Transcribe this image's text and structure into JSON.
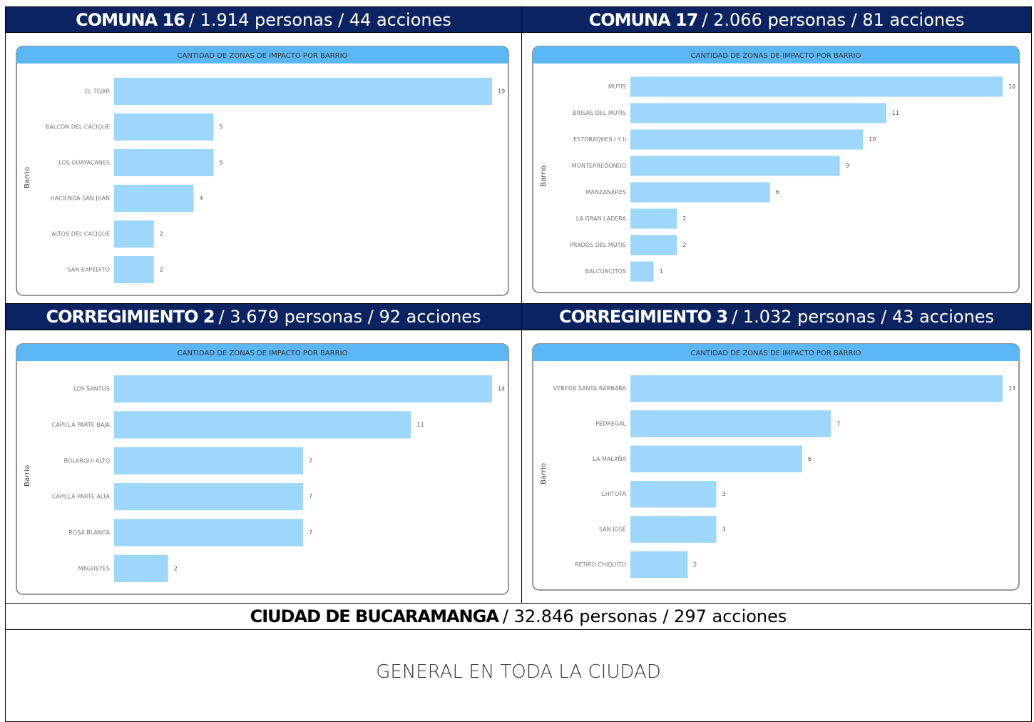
{
  "sections": [
    {
      "name": "COMUNA 16",
      "summary": "/ 1.914 personas / 44 acciones",
      "chart": {
        "type": "bar",
        "orientation": "horizontal",
        "title": "CANTIDAD DE ZONAS DE IMPACTO POR BARRIO",
        "y_label": "Barrio",
        "color": "#9dd7fb",
        "categories": [
          "EL TEJAR",
          "BALCÓN DEL CACIQUE",
          "LOS GUAYACANES",
          "HACIENDA SAN JUAN",
          "ALTOS DEL CACIQUE",
          "SAN EXPEDITO"
        ],
        "values": [
          19,
          5,
          5,
          4,
          2,
          2
        ],
        "xlim": [
          0,
          19
        ]
      }
    },
    {
      "name": "COMUNA 17",
      "summary": "/ 2.066 personas / 81 acciones",
      "chart": {
        "type": "bar",
        "orientation": "horizontal",
        "title": "CANTIDAD DE ZONAS DE IMPACTO POR BARRIO",
        "y_label": "Barrio",
        "color": "#9dd7fb",
        "categories": [
          "MUTIS",
          "BRISAS DEL MUTIS",
          "ESTORAQUES I Y II",
          "MONTERREDONDO",
          "MANZANARES",
          "LA GRAN LADERA",
          "PRADOS DEL MUTIS",
          "BALCONCITOS"
        ],
        "values": [
          16,
          11,
          10,
          9,
          6,
          2,
          2,
          1
        ],
        "xlim": [
          0,
          16
        ]
      }
    },
    {
      "name": "CORREGIMIENTO 2",
      "summary": "/ 3.679 personas / 92 acciones",
      "chart": {
        "type": "bar",
        "orientation": "horizontal",
        "title": "CANTIDAD DE ZONAS DE IMPACTO POR BARRIO",
        "y_label": "Barrio",
        "color": "#9dd7fb",
        "categories": [
          "LOS SANTOS",
          "CAPILLA PARTE BAJA",
          "BOLARQUI ALTO",
          "CAPILLA PARTE ALTA",
          "ROSA BLANCA",
          "MAGUEYES"
        ],
        "values": [
          14,
          11,
          7,
          7,
          7,
          2
        ],
        "xlim": [
          0,
          14
        ]
      }
    },
    {
      "name": "CORREGIMIENTO 3",
      "summary": "/ 1.032 personas / 43 acciones",
      "chart": {
        "type": "bar",
        "orientation": "horizontal",
        "title": "CANTIDAD DE ZONAS DE IMPACTO POR BARRIO",
        "y_label": "Barrio",
        "color": "#9dd7fb",
        "categories": [
          "VEREDA SANTA BÁRBARA",
          "PEDREGAL",
          "LA MALAÑA",
          "CHITOTA",
          "SAN JOSÉ",
          "RETIRO CHIQUITO"
        ],
        "values": [
          13,
          7,
          6,
          3,
          3,
          2
        ],
        "xlim": [
          0,
          13
        ]
      }
    }
  ],
  "city": {
    "name": "CIUDAD DE BUCARAMANGA",
    "summary": "/ 32.846 personas / 297 acciones",
    "body": "GENERAL EN TODA LA CIUDAD"
  }
}
